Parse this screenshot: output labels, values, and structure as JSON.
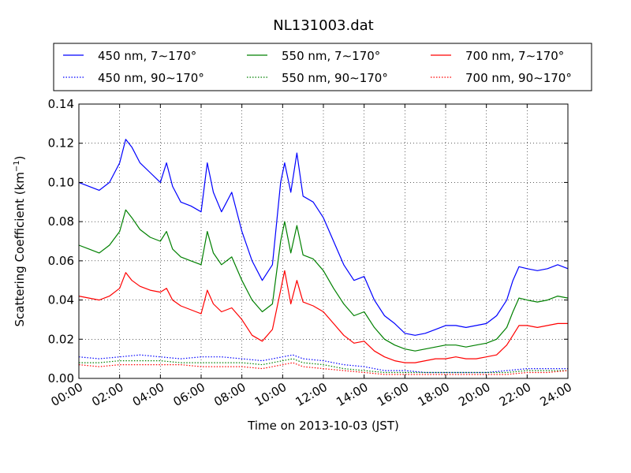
{
  "chart_data": {
    "type": "line",
    "title": "NL131003.dat",
    "xlabel": "Time on 2013-10-03 (JST)",
    "ylabel_main": "Scattering Coefficient (km",
    "ylabel_sup": "−1",
    "ylabel_end": ")",
    "x_unit": "hours (JST) on 2013-10-03",
    "xlim": [
      0,
      24
    ],
    "ylim": [
      0,
      0.14
    ],
    "grid": true,
    "legend_position": "top",
    "x_ticks": [
      {
        "v": 0,
        "label": "00:00"
      },
      {
        "v": 2,
        "label": "02:00"
      },
      {
        "v": 4,
        "label": "04:00"
      },
      {
        "v": 6,
        "label": "06:00"
      },
      {
        "v": 8,
        "label": "08:00"
      },
      {
        "v": 10,
        "label": "10:00"
      },
      {
        "v": 12,
        "label": "12:00"
      },
      {
        "v": 14,
        "label": "14:00"
      },
      {
        "v": 16,
        "label": "16:00"
      },
      {
        "v": 18,
        "label": "18:00"
      },
      {
        "v": 20,
        "label": "20:00"
      },
      {
        "v": 22,
        "label": "22:00"
      },
      {
        "v": 24,
        "label": "24:00"
      }
    ],
    "y_ticks": [
      {
        "v": 0,
        "label": "0.00"
      },
      {
        "v": 0.02,
        "label": "0.02"
      },
      {
        "v": 0.04,
        "label": "0.04"
      },
      {
        "v": 0.06,
        "label": "0.06"
      },
      {
        "v": 0.08,
        "label": "0.08"
      },
      {
        "v": 0.1,
        "label": "0.10"
      },
      {
        "v": 0.12,
        "label": "0.12"
      },
      {
        "v": 0.14,
        "label": "0.14"
      }
    ],
    "series": [
      {
        "name": "450 nm, 7∼170°",
        "color": "#0000ff",
        "style": "solid",
        "x": [
          0,
          0.5,
          1,
          1.5,
          2,
          2.3,
          2.6,
          3,
          3.5,
          4,
          4.3,
          4.6,
          5,
          5.5,
          6,
          6.3,
          6.6,
          7,
          7.5,
          8,
          8.5,
          9,
          9.5,
          9.9,
          10.1,
          10.4,
          10.7,
          11,
          11.5,
          12,
          12.5,
          13,
          13.5,
          14,
          14.5,
          15,
          15.5,
          16,
          16.5,
          17,
          17.5,
          18,
          18.5,
          19,
          19.5,
          20,
          20.5,
          21,
          21.3,
          21.6,
          22,
          22.5,
          23,
          23.5,
          24
        ],
        "y": [
          0.1,
          0.098,
          0.096,
          0.1,
          0.11,
          0.122,
          0.118,
          0.11,
          0.105,
          0.1,
          0.11,
          0.098,
          0.09,
          0.088,
          0.085,
          0.11,
          0.095,
          0.085,
          0.095,
          0.075,
          0.06,
          0.05,
          0.058,
          0.1,
          0.11,
          0.095,
          0.115,
          0.093,
          0.09,
          0.082,
          0.07,
          0.058,
          0.05,
          0.052,
          0.04,
          0.032,
          0.028,
          0.023,
          0.022,
          0.023,
          0.025,
          0.027,
          0.027,
          0.026,
          0.027,
          0.028,
          0.032,
          0.04,
          0.05,
          0.057,
          0.056,
          0.055,
          0.056,
          0.058,
          0.056
        ]
      },
      {
        "name": "450 nm, 90∼170°",
        "color": "#0000ff",
        "style": "dotted",
        "x": [
          0,
          1,
          2,
          3,
          4,
          5,
          6,
          7,
          8,
          9,
          10,
          10.5,
          11,
          12,
          13,
          14,
          15,
          16,
          17,
          18,
          19,
          20,
          21,
          22,
          23,
          24
        ],
        "y": [
          0.011,
          0.01,
          0.011,
          0.012,
          0.011,
          0.01,
          0.011,
          0.011,
          0.01,
          0.009,
          0.011,
          0.012,
          0.01,
          0.009,
          0.007,
          0.006,
          0.004,
          0.004,
          0.003,
          0.003,
          0.003,
          0.003,
          0.004,
          0.005,
          0.005,
          0.005
        ]
      },
      {
        "name": "550 nm, 7∼170°",
        "color": "#008000",
        "style": "solid",
        "x": [
          0,
          0.5,
          1,
          1.5,
          2,
          2.3,
          2.6,
          3,
          3.5,
          4,
          4.3,
          4.6,
          5,
          5.5,
          6,
          6.3,
          6.6,
          7,
          7.5,
          8,
          8.5,
          9,
          9.5,
          9.9,
          10.1,
          10.4,
          10.7,
          11,
          11.5,
          12,
          12.5,
          13,
          13.5,
          14,
          14.5,
          15,
          15.5,
          16,
          16.5,
          17,
          17.5,
          18,
          18.5,
          19,
          19.5,
          20,
          20.5,
          21,
          21.3,
          21.6,
          22,
          22.5,
          23,
          23.5,
          24
        ],
        "y": [
          0.068,
          0.066,
          0.064,
          0.068,
          0.075,
          0.086,
          0.082,
          0.076,
          0.072,
          0.07,
          0.075,
          0.066,
          0.062,
          0.06,
          0.058,
          0.075,
          0.064,
          0.058,
          0.062,
          0.05,
          0.04,
          0.034,
          0.038,
          0.07,
          0.08,
          0.064,
          0.078,
          0.063,
          0.061,
          0.055,
          0.046,
          0.038,
          0.032,
          0.034,
          0.026,
          0.02,
          0.017,
          0.015,
          0.014,
          0.015,
          0.016,
          0.017,
          0.017,
          0.016,
          0.017,
          0.018,
          0.02,
          0.026,
          0.034,
          0.041,
          0.04,
          0.039,
          0.04,
          0.042,
          0.041
        ]
      },
      {
        "name": "550 nm, 90∼170°",
        "color": "#008000",
        "style": "dotted",
        "x": [
          0,
          1,
          2,
          3,
          4,
          5,
          6,
          7,
          8,
          9,
          10,
          10.5,
          11,
          12,
          13,
          14,
          15,
          16,
          17,
          18,
          19,
          20,
          21,
          22,
          23,
          24
        ],
        "y": [
          0.008,
          0.008,
          0.009,
          0.009,
          0.009,
          0.008,
          0.008,
          0.008,
          0.008,
          0.007,
          0.009,
          0.01,
          0.008,
          0.007,
          0.005,
          0.004,
          0.003,
          0.003,
          0.003,
          0.003,
          0.003,
          0.003,
          0.003,
          0.004,
          0.004,
          0.004
        ]
      },
      {
        "name": "700 nm, 7∼170°",
        "color": "#ff0000",
        "style": "solid",
        "x": [
          0,
          0.5,
          1,
          1.5,
          2,
          2.3,
          2.6,
          3,
          3.5,
          4,
          4.3,
          4.6,
          5,
          5.5,
          6,
          6.3,
          6.6,
          7,
          7.5,
          8,
          8.5,
          9,
          9.5,
          9.9,
          10.1,
          10.4,
          10.7,
          11,
          11.5,
          12,
          12.5,
          13,
          13.5,
          14,
          14.5,
          15,
          15.5,
          16,
          16.5,
          17,
          17.5,
          18,
          18.5,
          19,
          19.5,
          20,
          20.5,
          21,
          21.3,
          21.6,
          22,
          22.5,
          23,
          23.5,
          24
        ],
        "y": [
          0.042,
          0.041,
          0.04,
          0.042,
          0.046,
          0.054,
          0.05,
          0.047,
          0.045,
          0.044,
          0.046,
          0.04,
          0.037,
          0.035,
          0.033,
          0.045,
          0.038,
          0.034,
          0.036,
          0.03,
          0.022,
          0.019,
          0.025,
          0.045,
          0.055,
          0.038,
          0.05,
          0.039,
          0.037,
          0.034,
          0.028,
          0.022,
          0.018,
          0.019,
          0.014,
          0.011,
          0.009,
          0.008,
          0.008,
          0.009,
          0.01,
          0.01,
          0.011,
          0.01,
          0.01,
          0.011,
          0.012,
          0.017,
          0.022,
          0.027,
          0.027,
          0.026,
          0.027,
          0.028,
          0.028
        ]
      },
      {
        "name": "700 nm, 90∼170°",
        "color": "#ff0000",
        "style": "dotted",
        "x": [
          0,
          1,
          2,
          3,
          4,
          5,
          6,
          7,
          8,
          9,
          10,
          10.5,
          11,
          12,
          13,
          14,
          15,
          16,
          17,
          18,
          19,
          20,
          21,
          22,
          23,
          24
        ],
        "y": [
          0.007,
          0.006,
          0.007,
          0.007,
          0.007,
          0.007,
          0.006,
          0.006,
          0.006,
          0.005,
          0.007,
          0.008,
          0.006,
          0.005,
          0.004,
          0.003,
          0.002,
          0.002,
          0.002,
          0.002,
          0.002,
          0.002,
          0.002,
          0.003,
          0.003,
          0.004
        ]
      }
    ]
  }
}
